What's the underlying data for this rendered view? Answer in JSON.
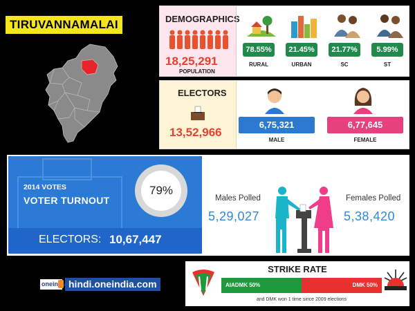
{
  "header": {
    "district_name": "TIRUVANNAMALAI"
  },
  "demographics": {
    "title": "DEMOGRAPHICS",
    "population": "18,25,291",
    "population_label": "POPULATION",
    "items": [
      {
        "pct": "78.55%",
        "label": "RURAL",
        "color": "#1f8a4c"
      },
      {
        "pct": "21.45%",
        "label": "URBAN",
        "color": "#1f8a4c"
      },
      {
        "pct": "21.77%",
        "label": "SC",
        "color": "#1f8a4c"
      },
      {
        "pct": "5.99%",
        "label": "ST",
        "color": "#1f8a4c"
      }
    ]
  },
  "electors": {
    "title": "ELECTORS",
    "total": "13,52,966",
    "male": {
      "value": "6,75,321",
      "label": "MALE",
      "color": "#2b79d0"
    },
    "female": {
      "value": "6,77,645",
      "label": "FEMALE",
      "color": "#e6407d"
    }
  },
  "turnout": {
    "year_label": "2014 VOTES",
    "label": "VOTER TURNOUT",
    "percent": "79%",
    "electors_label": "ELECTORS:",
    "electors_value": "10,67,447",
    "males_polled_label": "Males Polled",
    "males_polled": "5,29,027",
    "females_polled_label": "Females Polled",
    "females_polled": "5,38,420"
  },
  "branding": {
    "logo_text": "oneindia",
    "url": "hindi.oneindia.com"
  },
  "strike_rate": {
    "title": "STRIKE RATE",
    "left_label": "AIADMK 50%",
    "left_share": 0.5,
    "left_color": "#1c9b3c",
    "right_label": "DMK 50%",
    "right_share": 0.5,
    "right_color": "#e8302e",
    "note": "and DMK won 1 time since 2009 elections"
  }
}
